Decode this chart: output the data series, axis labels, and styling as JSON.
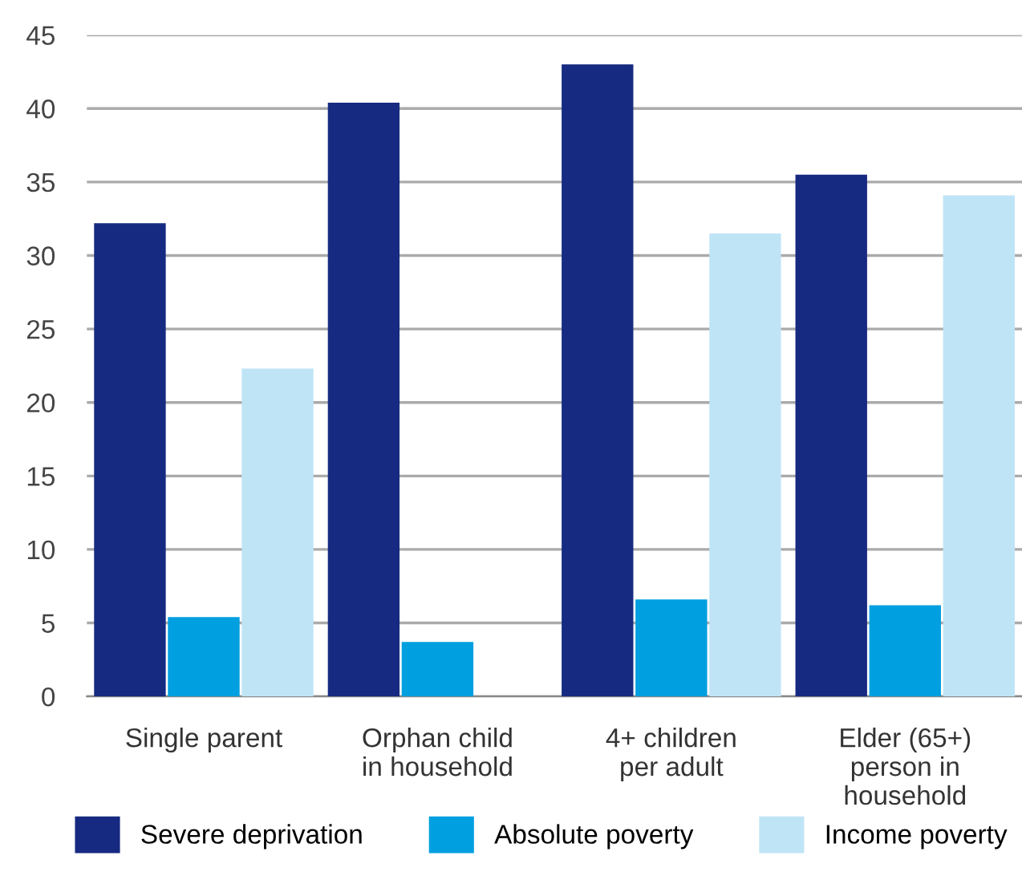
{
  "chart_data": {
    "type": "bar",
    "categories": [
      "Single parent",
      "Orphan child\nin household",
      "4+ children\nper adult",
      "Elder (65+)\nperson in\nhousehold"
    ],
    "series": [
      {
        "name": "Severe deprivation",
        "color": "#172a81",
        "values": [
          32.2,
          40.4,
          43.0,
          35.5
        ]
      },
      {
        "name": "Absolute poverty",
        "color": "#009fe0",
        "values": [
          5.4,
          3.7,
          6.6,
          6.2
        ]
      },
      {
        "name": "Income poverty",
        "color": "#bfe4f6",
        "values": [
          22.3,
          null,
          31.5,
          34.1
        ]
      }
    ],
    "ylim": [
      0,
      45
    ],
    "yticks": [
      0,
      5,
      10,
      15,
      20,
      25,
      30,
      35,
      40,
      45
    ],
    "grid": "y",
    "legend": "bottom"
  }
}
